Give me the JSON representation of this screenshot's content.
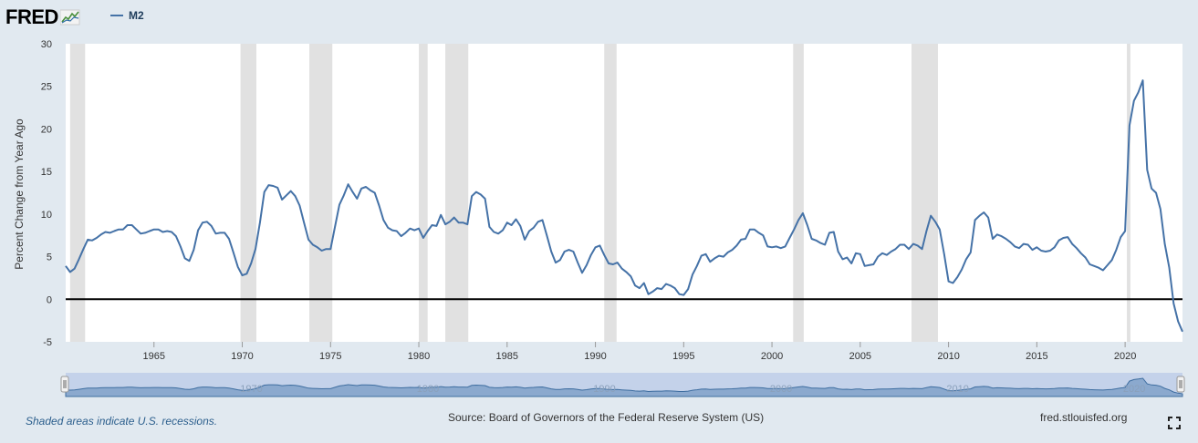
{
  "header": {
    "logo_text": "FRED",
    "legend_label": "M2"
  },
  "footer": {
    "recession_note": "Shaded areas indicate U.S. recessions.",
    "source": "Source: Board of Governors of the Federal Reserve System (US)",
    "site": "fred.stlouisfed.org"
  },
  "colors": {
    "series": "#4572a7",
    "background": "#e1e9f0",
    "plot": "#ffffff",
    "recession": "#e1e1e1",
    "navigator": "#c4d2ea",
    "zero_line": "#000000"
  },
  "chart_data": {
    "type": "line",
    "title": "",
    "xlabel": "",
    "ylabel": "Percent Change from Year Ago",
    "xlim": [
      1960.0,
      2023.25
    ],
    "ylim": [
      -5,
      30
    ],
    "yticks": [
      -5,
      0,
      5,
      10,
      15,
      20,
      25,
      30
    ],
    "xticks": [
      1965,
      1970,
      1975,
      1980,
      1985,
      1990,
      1995,
      2000,
      2005,
      2010,
      2015,
      2020
    ],
    "zero_line": 0,
    "recessions": [
      [
        1960.25,
        1961.1
      ],
      [
        1969.9,
        1970.8
      ],
      [
        1973.8,
        1975.1
      ],
      [
        1980.0,
        1980.5
      ],
      [
        1981.5,
        1982.8
      ],
      [
        1990.5,
        1991.2
      ],
      [
        2001.2,
        2001.8
      ],
      [
        2007.9,
        2009.4
      ],
      [
        2020.1,
        2020.3
      ]
    ],
    "navigator_labels": [
      "1970",
      "1980",
      "1990",
      "2000",
      "2010",
      "2020"
    ],
    "series": [
      {
        "name": "M2",
        "x": [
          1960.0,
          1960.25,
          1960.5,
          1960.75,
          1961.0,
          1961.25,
          1961.5,
          1961.75,
          1962.0,
          1962.25,
          1962.5,
          1962.75,
          1963.0,
          1963.25,
          1963.5,
          1963.75,
          1964.0,
          1964.25,
          1964.5,
          1964.75,
          1965.0,
          1965.25,
          1965.5,
          1965.75,
          1966.0,
          1966.25,
          1966.5,
          1966.75,
          1967.0,
          1967.25,
          1967.5,
          1967.75,
          1968.0,
          1968.25,
          1968.5,
          1968.75,
          1969.0,
          1969.25,
          1969.5,
          1969.75,
          1970.0,
          1970.25,
          1970.5,
          1970.75,
          1971.0,
          1971.25,
          1971.5,
          1971.75,
          1972.0,
          1972.25,
          1972.5,
          1972.75,
          1973.0,
          1973.25,
          1973.5,
          1973.75,
          1974.0,
          1974.25,
          1974.5,
          1974.75,
          1975.0,
          1975.25,
          1975.5,
          1975.75,
          1976.0,
          1976.25,
          1976.5,
          1976.75,
          1977.0,
          1977.25,
          1977.5,
          1977.75,
          1978.0,
          1978.25,
          1978.5,
          1978.75,
          1979.0,
          1979.25,
          1979.5,
          1979.75,
          1980.0,
          1980.25,
          1980.5,
          1980.75,
          1981.0,
          1981.25,
          1981.5,
          1981.75,
          1982.0,
          1982.25,
          1982.5,
          1982.75,
          1983.0,
          1983.25,
          1983.5,
          1983.75,
          1984.0,
          1984.25,
          1984.5,
          1984.75,
          1985.0,
          1985.25,
          1985.5,
          1985.75,
          1986.0,
          1986.25,
          1986.5,
          1986.75,
          1987.0,
          1987.25,
          1987.5,
          1987.75,
          1988.0,
          1988.25,
          1988.5,
          1988.75,
          1989.0,
          1989.25,
          1989.5,
          1989.75,
          1990.0,
          1990.25,
          1990.5,
          1990.75,
          1991.0,
          1991.25,
          1991.5,
          1991.75,
          1992.0,
          1992.25,
          1992.5,
          1992.75,
          1993.0,
          1993.25,
          1993.5,
          1993.75,
          1994.0,
          1994.25,
          1994.5,
          1994.75,
          1995.0,
          1995.25,
          1995.5,
          1995.75,
          1996.0,
          1996.25,
          1996.5,
          1996.75,
          1997.0,
          1997.25,
          1997.5,
          1997.75,
          1998.0,
          1998.25,
          1998.5,
          1998.75,
          1999.0,
          1999.25,
          1999.5,
          1999.75,
          2000.0,
          2000.25,
          2000.5,
          2000.75,
          2001.0,
          2001.25,
          2001.5,
          2001.75,
          2002.0,
          2002.25,
          2002.5,
          2002.75,
          2003.0,
          2003.25,
          2003.5,
          2003.75,
          2004.0,
          2004.25,
          2004.5,
          2004.75,
          2005.0,
          2005.25,
          2005.5,
          2005.75,
          2006.0,
          2006.25,
          2006.5,
          2006.75,
          2007.0,
          2007.25,
          2007.5,
          2007.75,
          2008.0,
          2008.25,
          2008.5,
          2008.75,
          2009.0,
          2009.25,
          2009.5,
          2009.75,
          2010.0,
          2010.25,
          2010.5,
          2010.75,
          2011.0,
          2011.25,
          2011.5,
          2011.75,
          2012.0,
          2012.25,
          2012.5,
          2012.75,
          2013.0,
          2013.25,
          2013.5,
          2013.75,
          2014.0,
          2014.25,
          2014.5,
          2014.75,
          2015.0,
          2015.25,
          2015.5,
          2015.75,
          2016.0,
          2016.25,
          2016.5,
          2016.75,
          2017.0,
          2017.25,
          2017.5,
          2017.75,
          2018.0,
          2018.25,
          2018.5,
          2018.75,
          2019.0,
          2019.25,
          2019.5,
          2019.75,
          2020.0,
          2020.25,
          2020.5,
          2020.75,
          2021.0,
          2021.25,
          2021.5,
          2021.75,
          2022.0,
          2022.25,
          2022.5,
          2022.75,
          2023.0,
          2023.25
        ],
        "values": [
          3.9,
          3.2,
          3.6,
          4.7,
          5.9,
          7.0,
          6.9,
          7.2,
          7.6,
          7.9,
          7.8,
          8.0,
          8.2,
          8.2,
          8.7,
          8.7,
          8.2,
          7.7,
          7.8,
          8.0,
          8.2,
          8.2,
          7.9,
          8.0,
          7.9,
          7.4,
          6.2,
          4.8,
          4.5,
          5.8,
          8.1,
          9.0,
          9.1,
          8.6,
          7.7,
          7.8,
          7.8,
          7.1,
          5.5,
          3.8,
          2.8,
          3.0,
          4.2,
          5.9,
          9.0,
          12.6,
          13.4,
          13.3,
          13.1,
          11.7,
          12.2,
          12.7,
          12.1,
          11.0,
          9.0,
          7.0,
          6.4,
          6.1,
          5.7,
          5.9,
          5.9,
          8.5,
          11.1,
          12.2,
          13.5,
          12.6,
          11.8,
          13.0,
          13.2,
          12.8,
          12.5,
          11.0,
          9.3,
          8.4,
          8.1,
          8.0,
          7.4,
          7.8,
          8.3,
          8.1,
          8.3,
          7.2,
          8.0,
          8.7,
          8.6,
          9.9,
          8.8,
          9.1,
          9.6,
          9.0,
          9.0,
          8.8,
          12.1,
          12.6,
          12.3,
          11.8,
          8.5,
          7.9,
          7.7,
          8.1,
          9.0,
          8.7,
          9.4,
          8.6,
          7.0,
          8.0,
          8.4,
          9.1,
          9.3,
          7.5,
          5.6,
          4.3,
          4.6,
          5.6,
          5.8,
          5.6,
          4.3,
          3.1,
          4.0,
          5.2,
          6.1,
          6.3,
          5.2,
          4.2,
          4.1,
          4.3,
          3.6,
          3.2,
          2.7,
          1.6,
          1.3,
          1.9,
          0.6,
          0.9,
          1.3,
          1.2,
          1.8,
          1.6,
          1.3,
          0.6,
          0.5,
          1.2,
          2.9,
          3.9,
          5.1,
          5.3,
          4.4,
          4.8,
          5.1,
          5.0,
          5.5,
          5.8,
          6.3,
          7.0,
          7.1,
          8.2,
          8.2,
          7.8,
          7.5,
          6.2,
          6.1,
          6.2,
          6.0,
          6.2,
          7.2,
          8.2,
          9.3,
          10.1,
          8.7,
          7.1,
          6.9,
          6.6,
          6.4,
          7.8,
          7.9,
          5.6,
          4.7,
          4.9,
          4.2,
          5.4,
          5.3,
          3.9,
          4.0,
          4.1,
          5.0,
          5.4,
          5.2,
          5.6,
          5.9,
          6.4,
          6.4,
          5.9,
          6.5,
          6.3,
          5.9,
          8.0,
          9.8,
          9.1,
          8.2,
          5.3,
          2.1,
          1.9,
          2.6,
          3.5,
          4.7,
          5.5,
          9.3,
          9.8,
          10.2,
          9.6,
          7.1,
          7.6,
          7.4,
          7.1,
          6.7,
          6.2,
          6.0,
          6.5,
          6.4,
          5.8,
          6.1,
          5.7,
          5.6,
          5.7,
          6.1,
          6.9,
          7.2,
          7.3,
          6.5,
          6.0,
          5.4,
          4.9,
          4.1,
          3.9,
          3.7,
          3.4,
          4.0,
          4.6,
          5.8,
          7.3,
          8.0,
          20.4,
          23.3,
          24.3,
          25.7,
          15.2,
          13.0,
          12.5,
          10.6,
          6.5,
          3.7,
          -0.5,
          -2.6,
          -3.8
        ]
      }
    ]
  }
}
